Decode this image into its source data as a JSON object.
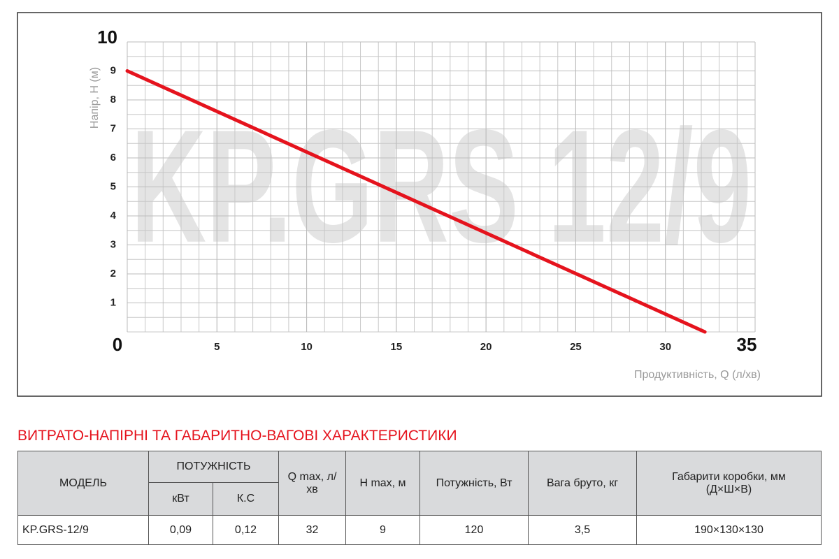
{
  "chart_data": {
    "type": "line",
    "watermark": "KP.GRS 12/9",
    "y_label": "Напір, H (м)",
    "x_label": "Продуктивність, Q (л/хв)",
    "x": [
      0,
      32.2
    ],
    "series": [
      {
        "color": "#e5131d",
        "values": [
          9,
          0
        ]
      }
    ],
    "xlim": [
      0,
      35
    ],
    "ylim": [
      0,
      10
    ],
    "xticks": [
      0,
      5,
      10,
      15,
      20,
      25,
      30,
      35
    ],
    "yticks": [
      1,
      2,
      3,
      4,
      5,
      6,
      7,
      8,
      9,
      10
    ],
    "grid": true
  },
  "section_title": "ВИТРАТО-НАПІРНІ ТА ГАБАРИТНО-ВАГОВІ ХАРАКТЕРИСТИКИ",
  "table": {
    "header": [
      "МОДЕЛЬ",
      "ПОТУЖНІСТЬ",
      "Q max, л/хв",
      "H max, м",
      "Потужність, Вт",
      "Вага бруто, кг",
      "Габарити коробки, мм (Д×Ш×В)"
    ],
    "subheader": [
      "кВт",
      "К.С"
    ],
    "rows": [
      [
        "KP.GRS-12/9",
        "0,09",
        "0,12",
        "32",
        "9",
        "120",
        "3,5",
        "190×130×130"
      ]
    ]
  }
}
